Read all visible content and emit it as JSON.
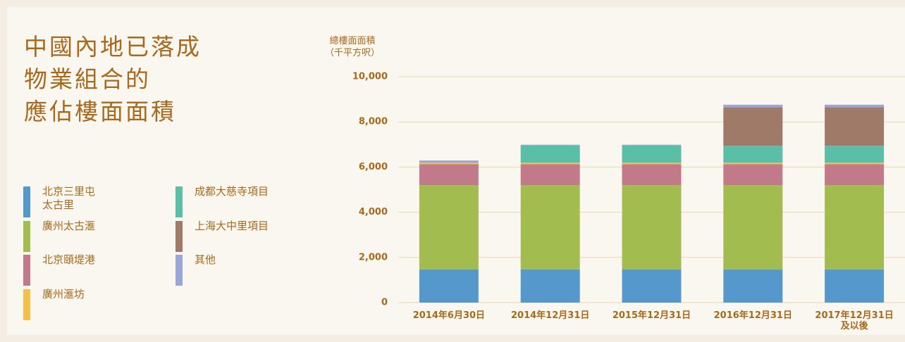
{
  "chart_data": {
    "type": "stacked_bar",
    "title": "中國內地已落成\n物業組合的\n應佔樓面面積",
    "y_label": "總樓面面積\n（千平方呎）",
    "categories": [
      "2014年6月30日",
      "2014年12月31日",
      "2015年12月31日",
      "2016年12月31日",
      "2017年12月31日\n及以後"
    ],
    "series": [
      {
        "name": "北京三里屯\n太古里",
        "color": "#5599cc",
        "values": [
          1470,
          1470,
          1470,
          1470,
          1470
        ]
      },
      {
        "name": "廣州太古滙",
        "color": "#a3bc50",
        "values": [
          3730,
          3730,
          3730,
          3730,
          3730
        ]
      },
      {
        "name": "北京頤堤港",
        "color": "#c27a8b",
        "values": [
          930,
          930,
          930,
          930,
          930
        ]
      },
      {
        "name": "廣州滙坊",
        "color": "#f5c04a",
        "values": [
          60,
          60,
          60,
          60,
          60
        ]
      },
      {
        "name": "成都大慈寺項目",
        "color": "#5bbfa8",
        "values": [
          0,
          780,
          780,
          750,
          750
        ]
      },
      {
        "name": "上海大中里項目",
        "color": "#a07a68",
        "values": [
          0,
          0,
          0,
          1710,
          1710
        ]
      },
      {
        "name": "其他",
        "color": "#9aa6d8",
        "values": [
          100,
          20,
          20,
          110,
          110
        ]
      }
    ],
    "ylim": [
      0,
      10000
    ],
    "yticks": [
      0,
      {
        "value": 2000,
        "label": "2,000"
      },
      {
        "value": 4000,
        "label": "4,000"
      },
      {
        "value": 6000,
        "label": "6,000"
      },
      {
        "value": 8000,
        "label": "8,000"
      },
      {
        "value": 10000,
        "label": "10,000"
      }
    ],
    "grid": true
  }
}
